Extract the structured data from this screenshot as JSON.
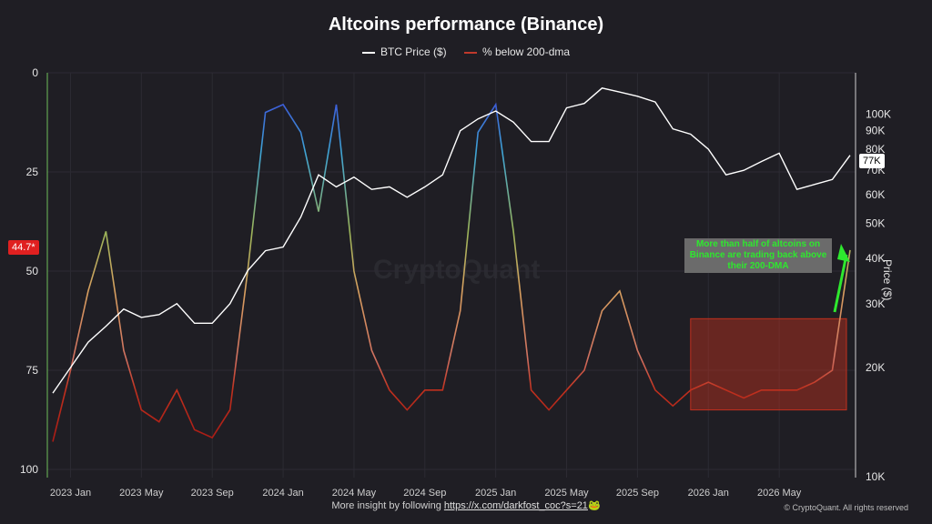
{
  "title": "Altcoins performance (Binance)",
  "legend": [
    {
      "label": "BTC Price ($)",
      "color": "#ffffff"
    },
    {
      "label": "% below 200-dma",
      "color": "#c0392b"
    }
  ],
  "left_axis": {
    "ticks": [
      "0",
      "25",
      "50",
      "75",
      "100"
    ],
    "current_badge": "44.7*"
  },
  "right_axis": {
    "title": "Price ($)",
    "ticks": [
      "100K",
      "90K",
      "80K",
      "70K",
      "60K",
      "50K",
      "40K",
      "30K",
      "20K",
      "10K"
    ],
    "current_badge": "77K"
  },
  "x_axis": {
    "ticks": [
      "2023 Jan",
      "2023 May",
      "2023 Sep",
      "2024 Jan",
      "2024 May",
      "2024 Sep",
      "2025 Jan",
      "2025 May",
      "2025 Sep",
      "2026 Jan",
      "2026 May"
    ]
  },
  "annotation": "More than half of altcoins on Binance are trading back above their 200-DMA",
  "watermark": "CryptoQuant",
  "footer": {
    "text": "More insight by following",
    "link": "https://x.com/darkfost_coc?s=21",
    "emoji": "🐸"
  },
  "copyright": "© CryptoQuant. All rights reserved",
  "chart_data": {
    "type": "line",
    "x": [
      "2022-12",
      "2023-01",
      "2023-02",
      "2023-03",
      "2023-04",
      "2023-05",
      "2023-06",
      "2023-07",
      "2023-08",
      "2023-09",
      "2023-10",
      "2023-11",
      "2023-12",
      "2024-01",
      "2024-02",
      "2024-03",
      "2024-04",
      "2024-05",
      "2024-06",
      "2024-07",
      "2024-08",
      "2024-09",
      "2024-10",
      "2024-11",
      "2024-12",
      "2025-01",
      "2025-02",
      "2025-03",
      "2025-04",
      "2025-05",
      "2025-06",
      "2025-07",
      "2025-08",
      "2025-09",
      "2025-10",
      "2025-11",
      "2025-12",
      "2026-01",
      "2026-02",
      "2026-03",
      "2026-04",
      "2026-05",
      "2026-06",
      "2026-07",
      "2026-08",
      "2026-09"
    ],
    "series": [
      {
        "name": "BTC Price ($)",
        "axis": "right",
        "scale": "log",
        "values": [
          17000,
          20000,
          23500,
          26000,
          29000,
          27500,
          28000,
          30000,
          26500,
          26500,
          30000,
          37000,
          42000,
          43000,
          52000,
          68000,
          63000,
          67000,
          62000,
          63000,
          59000,
          63000,
          68000,
          90000,
          97000,
          102000,
          95000,
          84000,
          84000,
          104000,
          107000,
          118000,
          115000,
          112000,
          108000,
          91000,
          88000,
          80000,
          68000,
          70000,
          74000,
          78000,
          62000,
          64000,
          66000,
          77000
        ]
      },
      {
        "name": "% below 200-dma",
        "axis": "left",
        "values": [
          93,
          75,
          55,
          40,
          70,
          85,
          88,
          80,
          90,
          92,
          85,
          50,
          10,
          8,
          15,
          35,
          8,
          50,
          70,
          80,
          85,
          80,
          80,
          60,
          15,
          8,
          40,
          80,
          85,
          80,
          75,
          60,
          55,
          70,
          80,
          84,
          80,
          78,
          80,
          82,
          80,
          80,
          80,
          78,
          75,
          44.7
        ]
      }
    ],
    "y_left": {
      "range": [
        0,
        100
      ],
      "inverted": true
    },
    "y_right": {
      "range": [
        10000,
        130000
      ],
      "scale": "log"
    },
    "grid": true
  }
}
